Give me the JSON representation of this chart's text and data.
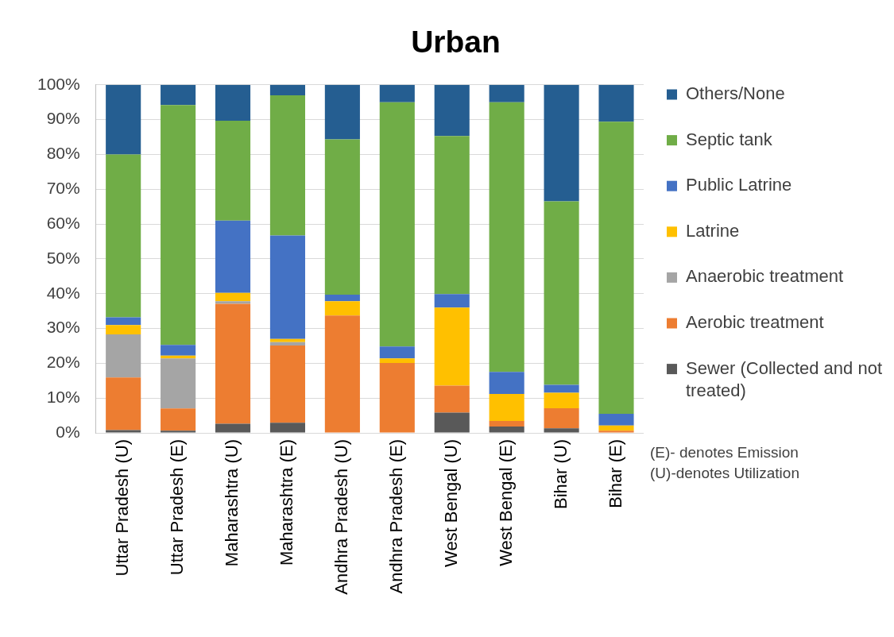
{
  "chart_data": {
    "type": "bar",
    "title": "Urban",
    "categories": [
      "Uttar Pradesh (U)",
      "Uttar Pradesh (E)",
      "Maharashtra (U)",
      "Maharashtra (E)",
      "Andhra Pradesh (U)",
      "Andhra Pradesh (E)",
      "West Bengal (U)",
      "West Bengal (E)",
      "Bihar (U)",
      "Bihar (E)"
    ],
    "series": [
      {
        "name": "Sewer (Collected and not treated)",
        "color": "#595959",
        "values": [
          0.8,
          0.6,
          2.6,
          2.9,
          0,
          0,
          5.8,
          1.8,
          1.3,
          0
        ]
      },
      {
        "name": "Aerobic treatment",
        "color": "#ed7d31",
        "values": [
          15.1,
          6.4,
          34.5,
          22.2,
          33.7,
          20.1,
          7.8,
          1.6,
          5.8,
          0.6
        ]
      },
      {
        "name": "Anaerobic treatment",
        "color": "#a5a5a5",
        "values": [
          12.4,
          14.4,
          0.7,
          1.0,
          0,
          0,
          0,
          0,
          0,
          0
        ]
      },
      {
        "name": "Latrine",
        "color": "#ffc000",
        "values": [
          2.7,
          0.8,
          2.4,
          0.9,
          4.1,
          1.3,
          22.4,
          7.8,
          4.4,
          1.5
        ]
      },
      {
        "name": "Public Latrine",
        "color": "#4472c4",
        "values": [
          2.2,
          3.1,
          20.8,
          29.7,
          1.9,
          3.4,
          3.9,
          6.3,
          2.3,
          3.4
        ]
      },
      {
        "name": "Septic tank",
        "color": "#70ad47",
        "values": [
          46.8,
          68.9,
          28.7,
          40.3,
          44.6,
          70.2,
          45.4,
          77.5,
          52.7,
          83.9
        ]
      },
      {
        "name": "Others/None",
        "color": "#255e91",
        "values": [
          20.0,
          5.8,
          10.3,
          3.0,
          15.7,
          5.0,
          14.7,
          5.0,
          33.5,
          10.6
        ]
      }
    ],
    "stacked": true,
    "ylim": [
      0,
      100
    ],
    "yticks": [
      {
        "value": 0,
        "label": "0%"
      },
      {
        "value": 10,
        "label": "10%"
      },
      {
        "value": 20,
        "label": "20%"
      },
      {
        "value": 30,
        "label": "30%"
      },
      {
        "value": 40,
        "label": "40%"
      },
      {
        "value": 50,
        "label": "50%"
      },
      {
        "value": 60,
        "label": "60%"
      },
      {
        "value": 70,
        "label": "70%"
      },
      {
        "value": 80,
        "label": "80%"
      },
      {
        "value": 90,
        "label": "90%"
      },
      {
        "value": 100,
        "label": "100%"
      }
    ],
    "grid": "y",
    "legend": "right",
    "annotations": [
      "(E)- denotes Emission",
      "(U)-denotes Utilization"
    ]
  }
}
